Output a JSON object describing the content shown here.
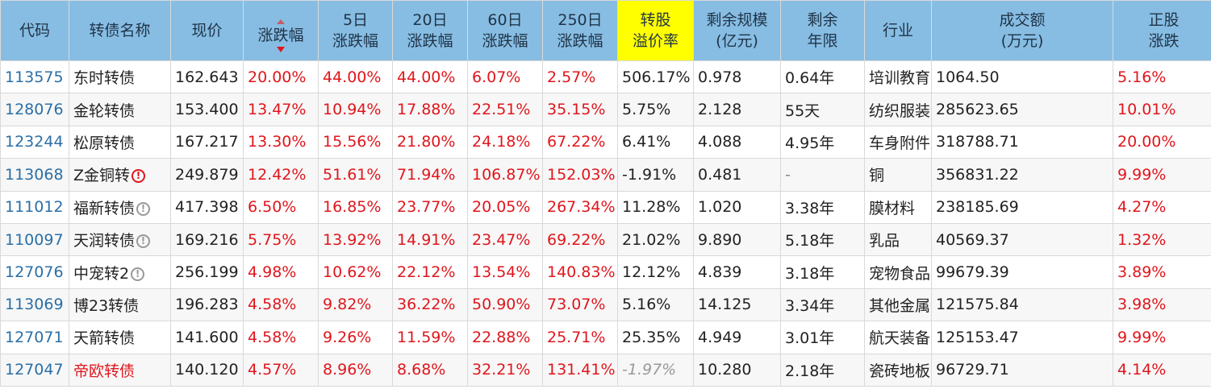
{
  "headers": {
    "code": "代码",
    "name": "转债名称",
    "price": "现价",
    "change": "涨跌幅",
    "chg5_l1": "5日",
    "chg5_l2": "涨跌幅",
    "chg20_l1": "20日",
    "chg20_l2": "涨跌幅",
    "chg60_l1": "60日",
    "chg60_l2": "涨跌幅",
    "chg250_l1": "250日",
    "chg250_l2": "涨跌幅",
    "premium_l1": "转股",
    "premium_l2": "溢价率",
    "scale_l1": "剩余规模",
    "scale_l2": "(亿元)",
    "term_l1": "剩余",
    "term_l2": "年限",
    "industry": "行业",
    "volume_l1": "成交额",
    "volume_l2": "(万元)",
    "stock_l1": "正股",
    "stock_l2": "涨跌"
  },
  "sort_icons": {
    "up": "sort-asc-icon",
    "down": "sort-desc-icon"
  },
  "colors": {
    "header_bg": "#87bde3",
    "highlight": "#ffff00",
    "rise": "#e0161c",
    "code": "#2b6fa6"
  },
  "rows": [
    {
      "code": "113575",
      "name": "东时转债",
      "price": "162.643",
      "change": "20.00%",
      "chg5": "44.00%",
      "chg20": "44.00%",
      "chg60": "6.07%",
      "chg250": "2.57%",
      "premium": "506.17%",
      "scale": "0.978",
      "term": "0.64年",
      "industry": "培训教育",
      "volume": "1064.50",
      "stock": "5.16%"
    },
    {
      "code": "128076",
      "name": "金轮转债",
      "price": "153.400",
      "change": "13.47%",
      "chg5": "10.94%",
      "chg20": "17.88%",
      "chg60": "22.51%",
      "chg250": "35.15%",
      "premium": "5.75%",
      "scale": "2.128",
      "term": "55天",
      "industry": "纺织服装设备",
      "volume": "285623.65",
      "stock": "10.01%"
    },
    {
      "code": "123244",
      "name": "松原转债",
      "price": "167.217",
      "change": "13.30%",
      "chg5": "15.56%",
      "chg20": "21.80%",
      "chg60": "24.18%",
      "chg250": "67.22%",
      "premium": "6.41%",
      "scale": "4.088",
      "term": "4.95年",
      "industry": "车身附件及饰件",
      "volume": "318788.71",
      "stock": "20.00%"
    },
    {
      "code": "113068",
      "name": "Z金铜转",
      "icon": "alert-icon",
      "icon_glyph": "!",
      "price": "249.879",
      "change": "12.42%",
      "chg5": "51.61%",
      "chg20": "71.94%",
      "chg60": "106.87%",
      "chg250": "152.03%",
      "premium": "-1.91%",
      "scale": "0.481",
      "term": "-",
      "industry": "铜",
      "volume": "356831.22",
      "stock": "9.99%"
    },
    {
      "code": "111012",
      "name": "福新转债",
      "icon": "info-icon",
      "icon_glyph": "!",
      "price": "417.398",
      "change": "6.50%",
      "chg5": "16.85%",
      "chg20": "23.77%",
      "chg60": "20.05%",
      "chg250": "267.34%",
      "premium": "11.28%",
      "scale": "1.020",
      "term": "3.38年",
      "industry": "膜材料",
      "volume": "238185.69",
      "stock": "4.27%"
    },
    {
      "code": "110097",
      "name": "天润转债",
      "icon": "info-icon",
      "icon_glyph": "!",
      "price": "169.216",
      "change": "5.75%",
      "chg5": "13.92%",
      "chg20": "14.91%",
      "chg60": "23.47%",
      "chg250": "69.22%",
      "premium": "21.02%",
      "scale": "9.890",
      "term": "5.18年",
      "industry": "乳品",
      "volume": "40569.37",
      "stock": "1.32%"
    },
    {
      "code": "127076",
      "name": "中宠转2",
      "icon": "info-icon",
      "icon_glyph": "!",
      "price": "256.199",
      "change": "4.98%",
      "chg5": "10.62%",
      "chg20": "22.12%",
      "chg60": "13.54%",
      "chg250": "140.83%",
      "premium": "12.12%",
      "scale": "4.839",
      "term": "3.18年",
      "industry": "宠物食品",
      "volume": "99679.39",
      "stock": "3.89%"
    },
    {
      "code": "113069",
      "name": "博23转债",
      "price": "196.283",
      "change": "4.58%",
      "chg5": "9.82%",
      "chg20": "36.22%",
      "chg60": "50.90%",
      "chg250": "73.07%",
      "premium": "5.16%",
      "scale": "14.125",
      "term": "3.34年",
      "industry": "其他金属新材料",
      "volume": "121575.84",
      "stock": "3.98%"
    },
    {
      "code": "127071",
      "name": "天箭转债",
      "price": "141.600",
      "change": "4.58%",
      "chg5": "9.26%",
      "chg20": "11.59%",
      "chg60": "22.88%",
      "chg250": "25.71%",
      "premium": "25.35%",
      "scale": "4.949",
      "term": "3.01年",
      "industry": "航天装备",
      "volume": "125153.47",
      "stock": "9.99%"
    },
    {
      "code": "127047",
      "name": "帝欧转债",
      "name_red": true,
      "premium_italic": true,
      "price": "140.120",
      "change": "4.57%",
      "chg5": "8.96%",
      "chg20": "8.68%",
      "chg60": "32.21%",
      "chg250": "131.41%",
      "premium": "-1.97%",
      "scale": "10.280",
      "term": "2.18年",
      "industry": "瓷砖地板",
      "volume": "96729.71",
      "stock": "4.14%"
    }
  ]
}
